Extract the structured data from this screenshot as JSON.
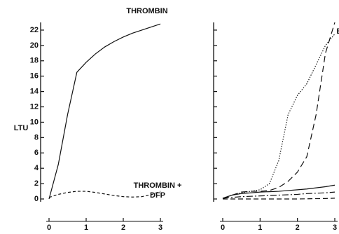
{
  "chart_data": [
    {
      "type": "line",
      "y_label": "LTU",
      "x": [
        0,
        0.25,
        0.5,
        0.75,
        1,
        1.25,
        1.5,
        1.75,
        2,
        2.25,
        2.5,
        2.75,
        3
      ],
      "xlim": [
        0,
        3
      ],
      "xticks": [
        0,
        1,
        2,
        3
      ],
      "ylim": [
        0,
        23
      ],
      "yticks": [
        0,
        2,
        4,
        6,
        8,
        10,
        12,
        14,
        16,
        18,
        20,
        22
      ],
      "series": [
        {
          "name": "THROMBIN",
          "color": "#111111",
          "dash": "none",
          "values": [
            0,
            4.5,
            11,
            16.5,
            17.8,
            18.9,
            19.8,
            20.5,
            21.1,
            21.6,
            22,
            22.4,
            22.8
          ]
        },
        {
          "name": "THROMBIN + DFP",
          "color": "#111111",
          "dash": "4 3",
          "values": [
            0.2,
            0.6,
            0.85,
            1,
            1,
            0.85,
            0.65,
            0.45,
            0.3,
            0.25,
            0.3,
            0.55,
            1
          ]
        }
      ]
    },
    {
      "type": "line",
      "x": [
        0,
        0.25,
        0.5,
        0.75,
        1,
        1.25,
        1.5,
        1.75,
        2,
        2.25,
        2.5,
        2.75,
        3
      ],
      "xlim": [
        0,
        3
      ],
      "xticks": [
        0,
        1,
        2,
        3
      ],
      "ylim": [
        0,
        23
      ],
      "yticks": [
        0,
        2,
        4,
        6,
        8,
        10,
        12,
        14,
        16,
        18,
        20,
        22
      ],
      "series": [
        {
          "color": "#111111",
          "dash": "1.5 2",
          "values": [
            0.1,
            0.5,
            0.8,
            1,
            1.2,
            2,
            5,
            11,
            13.5,
            15,
            17.5,
            20,
            21.5
          ]
        },
        {
          "name": "E",
          "color": "#111111",
          "dash": "9 5",
          "values": [
            0,
            0.5,
            0.9,
            1,
            1,
            1.1,
            1.5,
            2.3,
            3.5,
            5.5,
            11,
            19,
            23
          ]
        },
        {
          "color": "#111111",
          "dash": "none",
          "values": [
            0.1,
            0.5,
            0.7,
            0.8,
            0.9,
            0.95,
            1,
            1.1,
            1.2,
            1.3,
            1.45,
            1.6,
            1.8
          ]
        },
        {
          "color": "#111111",
          "dash": "9 3 2 3",
          "values": [
            0.1,
            0.2,
            0.3,
            0.35,
            0.4,
            0.45,
            0.5,
            0.55,
            0.6,
            0.7,
            0.75,
            0.8,
            0.9
          ]
        },
        {
          "color": "#111111",
          "dash": "7 4",
          "values": [
            0,
            0,
            0,
            0,
            0,
            0,
            0,
            0,
            0,
            0.02,
            0.04,
            0.06,
            0.1
          ]
        }
      ]
    }
  ]
}
